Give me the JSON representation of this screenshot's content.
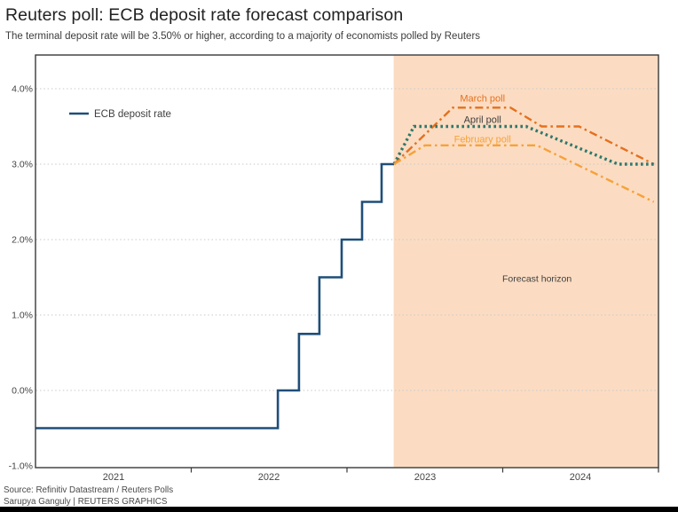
{
  "header": {
    "title": "Reuters poll: ECB deposit rate forecast comparison",
    "subtitle": "The terminal deposit rate will be 3.50% or higher, according to a majority of economists polled by Reuters"
  },
  "legend": {
    "label": "ECB deposit rate"
  },
  "footer": {
    "source": "Source: Refinitiv Datastream / Reuters Polls",
    "credit": "Sarupya Ganguly | REUTERS GRAPHICS"
  },
  "chart_data": {
    "type": "line",
    "title": "Reuters poll: ECB deposit rate forecast comparison",
    "subtitle": "The terminal deposit rate will be 3.50% or higher, according to a majority of economists polled by Reuters",
    "grid": "dotted-horizontal",
    "x_axis": {
      "range": [
        2021,
        2025
      ],
      "labels": [
        "2021",
        "2022",
        "2023",
        "2024"
      ],
      "label_positions": [
        2021.5,
        2022.5,
        2023.5,
        2024.5
      ],
      "boundary_ticks": [
        2022,
        2023,
        2024,
        2025
      ]
    },
    "y_axis": {
      "unit": "%",
      "range": [
        -1.0,
        4.0
      ],
      "labels": [
        "4.0%",
        "3.0%",
        "2.0%",
        "1.0%",
        "0.0%",
        "-1.0%"
      ],
      "values": [
        4,
        3,
        2,
        1,
        0,
        -1
      ],
      "gridline_values": [
        4,
        3,
        2,
        1,
        0
      ]
    },
    "forecast_region": {
      "label": "Forecast horizon",
      "x_start": 2023.3,
      "x_end": 2025.0,
      "fill": "#fbdcc2"
    },
    "series": [
      {
        "name": "ECB deposit rate",
        "color": "#1f4e79",
        "style": "solid",
        "points": [
          [
            2021.0,
            -0.5
          ],
          [
            2022.556,
            -0.5
          ],
          [
            2022.556,
            0.0
          ],
          [
            2022.692,
            0.0
          ],
          [
            2022.692,
            0.75
          ],
          [
            2022.823,
            0.75
          ],
          [
            2022.823,
            1.5
          ],
          [
            2022.966,
            1.5
          ],
          [
            2022.966,
            2.0
          ],
          [
            2023.097,
            2.0
          ],
          [
            2023.097,
            2.5
          ],
          [
            2023.222,
            2.5
          ],
          [
            2023.222,
            3.0
          ],
          [
            2023.302,
            3.0
          ]
        ]
      },
      {
        "name": "March poll",
        "color": "#e5701e",
        "style": "dashdot",
        "points": [
          [
            2023.302,
            3.0
          ],
          [
            2023.68,
            3.75
          ],
          [
            2024.05,
            3.75
          ],
          [
            2024.25,
            3.5
          ],
          [
            2024.49,
            3.5
          ],
          [
            2024.97,
            3.0
          ]
        ]
      },
      {
        "name": "April poll",
        "color": "#30786c",
        "style": "dotted",
        "points": [
          [
            2023.302,
            3.0
          ],
          [
            2023.43,
            3.5
          ],
          [
            2024.15,
            3.5
          ],
          [
            2024.74,
            3.0
          ],
          [
            2024.97,
            3.0
          ]
        ]
      },
      {
        "name": "February poll",
        "color": "#f7a13a",
        "style": "dashdot",
        "points": [
          [
            2023.302,
            3.0
          ],
          [
            2023.5,
            3.25
          ],
          [
            2024.22,
            3.25
          ],
          [
            2024.97,
            2.5
          ]
        ]
      }
    ],
    "annotations": [
      {
        "text": "March poll",
        "x": 2023.87,
        "y": 3.87,
        "color": "#e5701e",
        "size": 11
      },
      {
        "text": "April poll",
        "x": 2023.87,
        "y": 3.59,
        "color": "#3d3d3d",
        "size": 11
      },
      {
        "text": "February poll",
        "x": 2023.87,
        "y": 3.33,
        "color": "#f7a13a",
        "size": 11
      },
      {
        "text": "Forecast horizon",
        "x": 2024.22,
        "y": 1.48,
        "color": "#3f3f3f",
        "size": 10.5
      }
    ]
  }
}
